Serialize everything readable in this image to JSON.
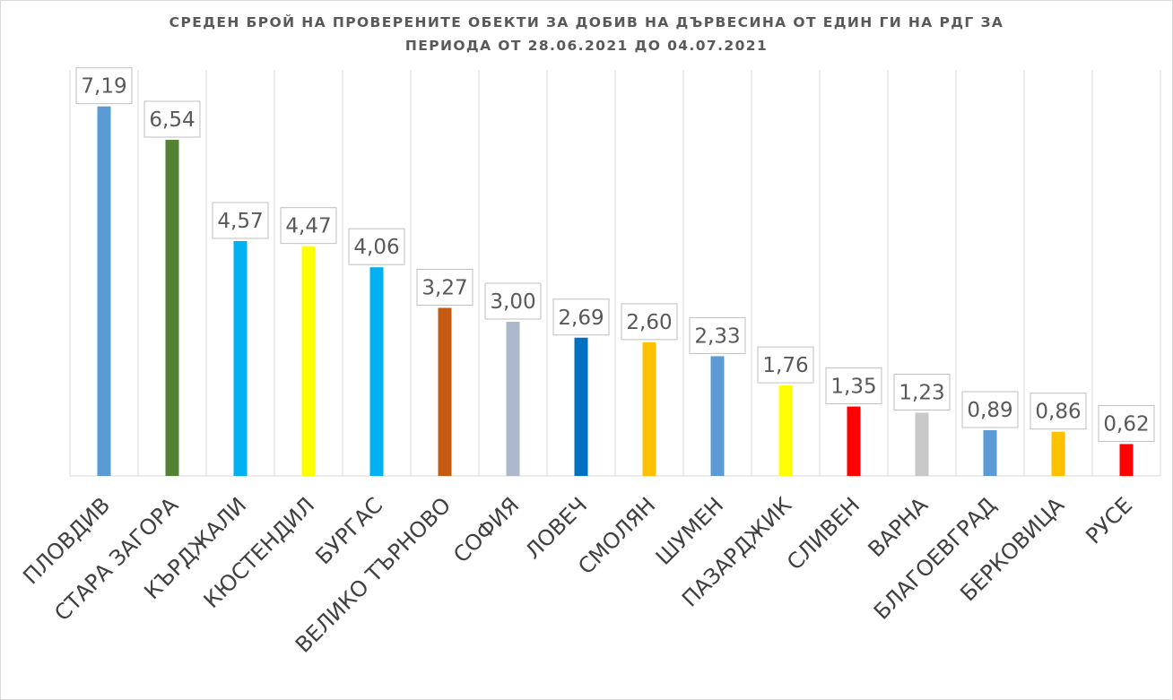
{
  "chart_data": {
    "type": "bar",
    "title_line1": "СРЕДЕН БРОЙ НА ПРОВЕРЕНИТЕ ОБЕКТИ ЗА ДОБИВ НА ДЪРВЕСИНА ОТ ЕДИН ГИ НА РДГ ЗА",
    "title_line2": "ПЕРИОДА ОТ 28.06.2021 ДО 04.07.2021",
    "categories": [
      "ПЛОВДИВ",
      "СТАРА ЗАГОРА",
      "КЪРДЖАЛИ",
      "КЮСТЕНДИЛ",
      "БУРГАС",
      "ВЕЛИКО ТЪРНОВО",
      "СОФИЯ",
      "ЛОВЕЧ",
      "СМОЛЯН",
      "ШУМЕН",
      "ПАЗАРДЖИК",
      "СЛИВЕН",
      "ВАРНА",
      "БЛАГОЕВГРАД",
      "БЕРКОВИЦА",
      "РУСЕ"
    ],
    "values": [
      7.19,
      6.54,
      4.57,
      4.47,
      4.06,
      3.27,
      3.0,
      2.69,
      2.6,
      2.33,
      1.76,
      1.35,
      1.23,
      0.89,
      0.86,
      0.62
    ],
    "value_labels": [
      "7,19",
      "6,54",
      "4,57",
      "4,47",
      "4,06",
      "3,27",
      "3,00",
      "2,69",
      "2,60",
      "2,33",
      "1,76",
      "1,35",
      "1,23",
      "0,89",
      "0,86",
      "0,62"
    ],
    "colors": [
      "#5b9bd5",
      "#548235",
      "#00b0f0",
      "#ffff00",
      "#00b0f0",
      "#c55a11",
      "#adb9ca",
      "#0070c0",
      "#ffc000",
      "#5b9bd5",
      "#ffff00",
      "#ff0000",
      "#c9c9c9",
      "#5b9bd5",
      "#ffc000",
      "#ff0000"
    ],
    "ylim": [
      0,
      7.9
    ],
    "grid": "vertical",
    "legend": "none"
  }
}
